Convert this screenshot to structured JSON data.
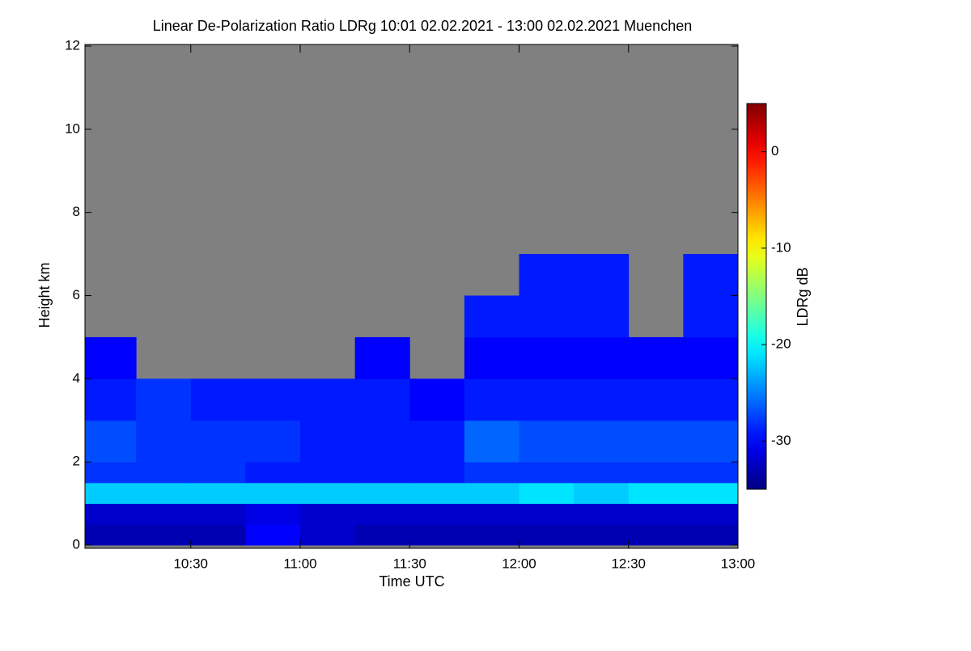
{
  "chart_data": {
    "type": "heatmap",
    "title": "Linear De-Polarization Ratio LDRg   10:01 02.02.2021 - 13:00 02.02.2021 Muenchen",
    "x_label": "Time UTC",
    "y_label": "Height km",
    "colorbar_label": "LDRg dB",
    "xbins": [
      "10:01",
      "10:15",
      "10:30",
      "10:45",
      "11:00",
      "11:15",
      "11:30",
      "11:45",
      "12:00",
      "12:15",
      "12:30",
      "12:45",
      "13:00"
    ],
    "ybins": [
      0,
      0.5,
      1,
      1.5,
      2,
      3,
      4,
      5,
      6,
      7,
      8,
      12
    ],
    "z": [
      [
        -33,
        -33,
        -33,
        -30,
        -32,
        -33,
        -33,
        -33,
        -33,
        -33,
        -33,
        -33
      ],
      [
        -32,
        -32,
        -32,
        -31,
        -32,
        -32,
        -32,
        -32,
        -32,
        -32,
        -32,
        -32
      ],
      [
        -22,
        -22,
        -22,
        -22,
        -22,
        -22,
        -22,
        -22,
        -21,
        -22,
        -21,
        -21
      ],
      [
        -28,
        -28,
        -28,
        -29,
        -29,
        -29,
        -29,
        -28,
        -28,
        -28,
        -28,
        -28
      ],
      [
        -27,
        -28,
        -28,
        -28,
        -29,
        -29,
        -29,
        -26,
        -27,
        -27,
        -27,
        -27
      ],
      [
        -29,
        -28,
        -29,
        -29,
        -29,
        -29,
        -30,
        -29,
        -29,
        -29,
        -29,
        -29
      ],
      [
        -30,
        null,
        null,
        null,
        null,
        -30,
        null,
        -30,
        -30,
        -30,
        -30,
        -30
      ],
      [
        null,
        null,
        null,
        null,
        null,
        null,
        null,
        -29,
        -29,
        -29,
        null,
        -29
      ],
      [
        null,
        null,
        null,
        null,
        null,
        null,
        null,
        null,
        -29,
        -29,
        null,
        -29
      ],
      [
        null,
        null,
        null,
        null,
        null,
        null,
        null,
        null,
        null,
        null,
        null,
        null
      ],
      [
        null,
        null,
        null,
        null,
        null,
        null,
        null,
        null,
        null,
        null,
        null,
        null
      ]
    ],
    "xlim": [
      "10:01",
      "13:00"
    ],
    "xticks": [
      "10:30",
      "11:00",
      "11:30",
      "12:00",
      "12:30",
      "13:00"
    ],
    "ylim": [
      0,
      12
    ],
    "yticks": [
      0,
      2,
      4,
      6,
      8,
      10,
      12
    ],
    "zlim": [
      -35,
      5
    ],
    "zticks": [
      -30,
      -20,
      -10,
      0
    ],
    "colormap": "jet",
    "null_color": "#808080"
  }
}
